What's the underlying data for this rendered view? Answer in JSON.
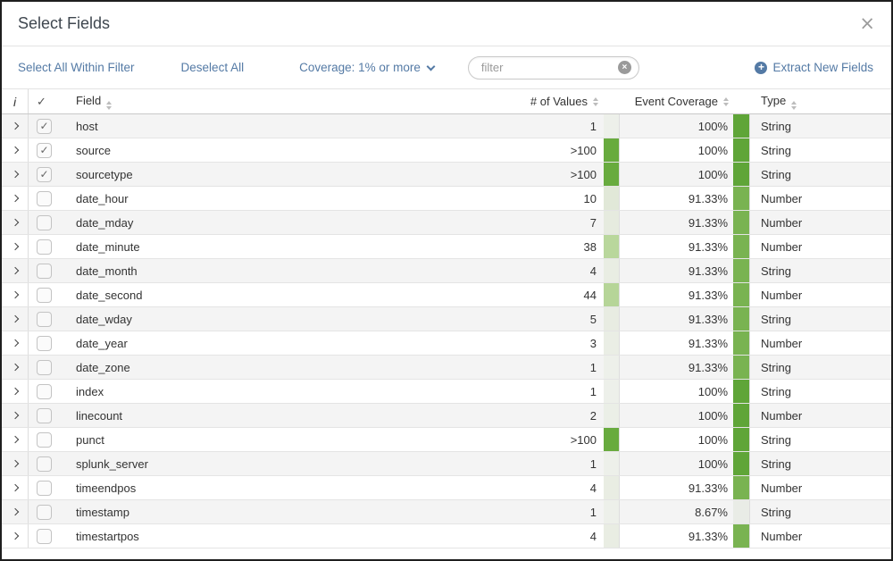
{
  "dialog": {
    "title": "Select Fields"
  },
  "icons": {
    "close": "×",
    "check": "✓",
    "clear": "×",
    "plus": "+",
    "info": "i"
  },
  "toolbar": {
    "select_all_label": "Select All Within Filter",
    "deselect_all_label": "Deselect All",
    "coverage_dropdown_label": "Coverage: 1% or more",
    "filter_placeholder": "filter",
    "filter_value": "",
    "extract_label": "Extract New Fields"
  },
  "table": {
    "headers": {
      "info": "i",
      "check": "✓",
      "field": "Field",
      "values": "# of Values",
      "coverage": "Event Coverage",
      "type": "Type"
    },
    "rows": [
      {
        "field": "host",
        "checked": true,
        "values": "1",
        "values_bar": "#edf0ea",
        "coverage": "100%",
        "coverage_bar": "#5fa538",
        "type": "String"
      },
      {
        "field": "source",
        "checked": true,
        "values": ">100",
        "values_bar": "#68ab3e",
        "coverage": "100%",
        "coverage_bar": "#5fa538",
        "type": "String"
      },
      {
        "field": "sourcetype",
        "checked": true,
        "values": ">100",
        "values_bar": "#68ab3e",
        "coverage": "100%",
        "coverage_bar": "#5fa538",
        "type": "String"
      },
      {
        "field": "date_hour",
        "checked": false,
        "values": "10",
        "values_bar": "#e1e8d8",
        "coverage": "91.33%",
        "coverage_bar": "#79b351",
        "type": "Number"
      },
      {
        "field": "date_mday",
        "checked": false,
        "values": "7",
        "values_bar": "#e6ebdf",
        "coverage": "91.33%",
        "coverage_bar": "#79b351",
        "type": "Number"
      },
      {
        "field": "date_minute",
        "checked": false,
        "values": "38",
        "values_bar": "#b9d79c",
        "coverage": "91.33%",
        "coverage_bar": "#79b351",
        "type": "Number"
      },
      {
        "field": "date_month",
        "checked": false,
        "values": "4",
        "values_bar": "#e9ede3",
        "coverage": "91.33%",
        "coverage_bar": "#79b351",
        "type": "String"
      },
      {
        "field": "date_second",
        "checked": false,
        "values": "44",
        "values_bar": "#b6d598",
        "coverage": "91.33%",
        "coverage_bar": "#79b351",
        "type": "Number"
      },
      {
        "field": "date_wday",
        "checked": false,
        "values": "5",
        "values_bar": "#e8ece2",
        "coverage": "91.33%",
        "coverage_bar": "#79b351",
        "type": "String"
      },
      {
        "field": "date_year",
        "checked": false,
        "values": "3",
        "values_bar": "#eaeee5",
        "coverage": "91.33%",
        "coverage_bar": "#79b351",
        "type": "Number"
      },
      {
        "field": "date_zone",
        "checked": false,
        "values": "1",
        "values_bar": "#edf0ea",
        "coverage": "91.33%",
        "coverage_bar": "#79b351",
        "type": "String"
      },
      {
        "field": "index",
        "checked": false,
        "values": "1",
        "values_bar": "#edf0ea",
        "coverage": "100%",
        "coverage_bar": "#5fa538",
        "type": "String"
      },
      {
        "field": "linecount",
        "checked": false,
        "values": "2",
        "values_bar": "#ebefe7",
        "coverage": "100%",
        "coverage_bar": "#5fa538",
        "type": "Number"
      },
      {
        "field": "punct",
        "checked": false,
        "values": ">100",
        "values_bar": "#68ab3e",
        "coverage": "100%",
        "coverage_bar": "#5fa538",
        "type": "String"
      },
      {
        "field": "splunk_server",
        "checked": false,
        "values": "1",
        "values_bar": "#edf0ea",
        "coverage": "100%",
        "coverage_bar": "#5fa538",
        "type": "String"
      },
      {
        "field": "timeendpos",
        "checked": false,
        "values": "4",
        "values_bar": "#e9ede3",
        "coverage": "91.33%",
        "coverage_bar": "#79b351",
        "type": "Number"
      },
      {
        "field": "timestamp",
        "checked": false,
        "values": "1",
        "values_bar": "#edf0ea",
        "coverage": "8.67%",
        "coverage_bar": "#e9ece6",
        "type": "String"
      },
      {
        "field": "timestartpos",
        "checked": false,
        "values": "4",
        "values_bar": "#e9ede3",
        "coverage": "91.33%",
        "coverage_bar": "#79b351",
        "type": "Number"
      }
    ]
  },
  "colors": {
    "accent_green_full": "#5fa538",
    "accent_green_mid": "#79b351",
    "accent_green_light": "#b9d79c",
    "link_blue": "#547aa5"
  }
}
